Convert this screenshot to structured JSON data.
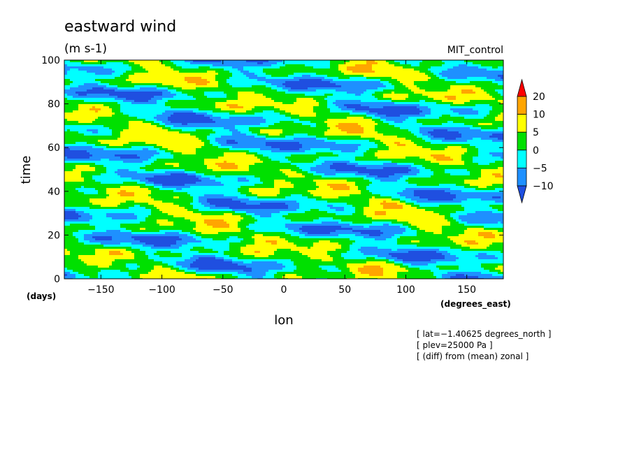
{
  "chart_data": {
    "type": "heatmap",
    "title": "eastward wind",
    "subtitle": "(m s-1)",
    "run_label": "MIT_control",
    "xlabel": "lon",
    "xunits": "(degrees_east)",
    "ylabel": "time",
    "yunits": "(days)",
    "xlim": [
      -180,
      180
    ],
    "ylim": [
      0,
      100
    ],
    "xticks": [
      -150,
      -100,
      -50,
      0,
      50,
      100,
      150
    ],
    "yticks": [
      0,
      20,
      40,
      60,
      80,
      100
    ],
    "xtick_labels": [
      "−150",
      "−100",
      "−50",
      "0",
      "50",
      "100",
      "150"
    ],
    "ytick_labels": [
      "0",
      "20",
      "40",
      "60",
      "80",
      "100"
    ],
    "colorbar": {
      "levels": [
        -10,
        -5,
        0,
        5,
        10,
        20
      ],
      "labels": [
        "−10",
        "−5",
        "0",
        "5",
        "10",
        "20"
      ],
      "colors": [
        "#1f4fe0",
        "#1e90ff",
        "#00ffff",
        "#00e000",
        "#ffff00",
        "#ffa500",
        "#ff0000"
      ]
    },
    "notes": [
      "[ lat=−1.40625 degrees_north ]",
      "[ plev=25000 Pa ]",
      "[ (diff) from (mean) zonal ]"
    ]
  }
}
